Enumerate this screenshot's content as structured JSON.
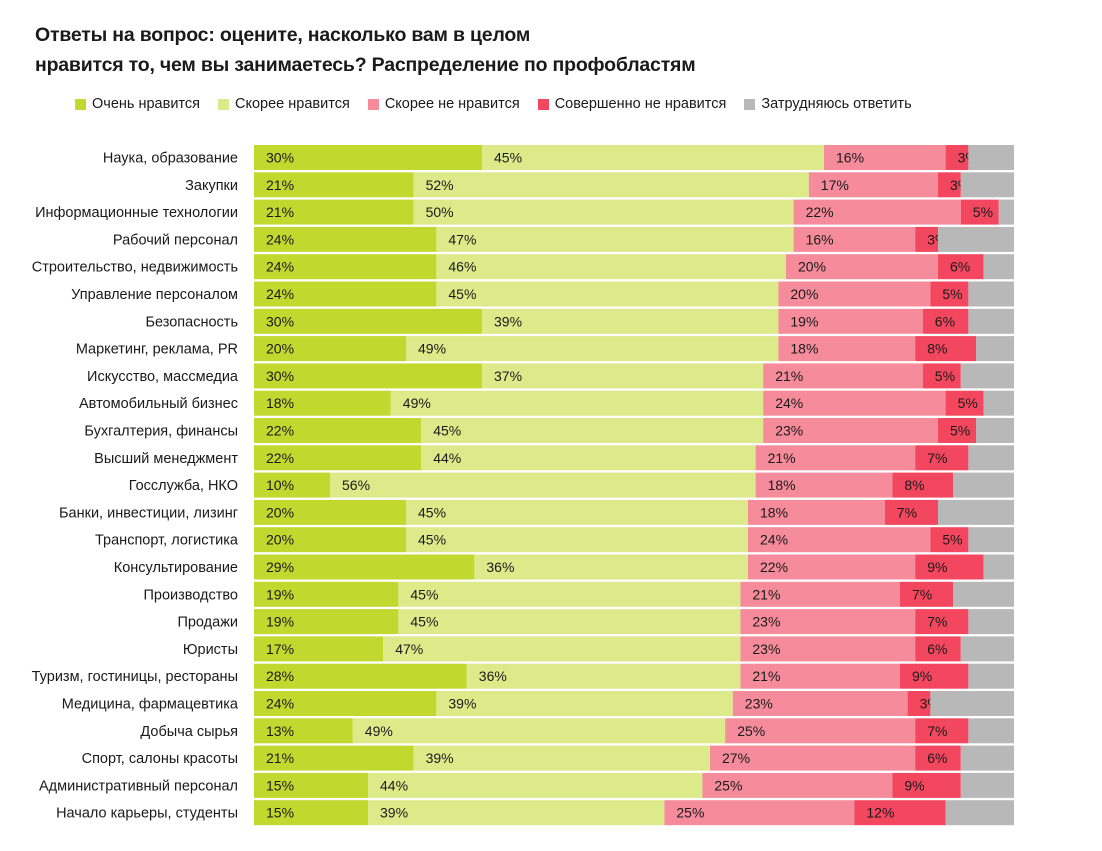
{
  "title_line1": "Ответы на вопрос: оцените, насколько вам в целом",
  "title_line2": "нравится то, чем вы занимаетесь? Распределение по профобластям",
  "chart_data": {
    "type": "bar",
    "orientation": "horizontal",
    "stacked": true,
    "normalized": true,
    "legend_position": "top",
    "categories": [
      "Наука, образование",
      "Закупки",
      "Информационные технологии",
      "Рабочий персонал",
      "Строительство, недвижимость",
      "Управление персоналом",
      "Безопасность",
      "Маркетинг, реклама, PR",
      "Искусство, массмедиа",
      "Автомобильный бизнес",
      "Бухгалтерия, финансы",
      "Высший менеджмент",
      "Госслужба, НКО",
      "Банки, инвестиции, лизинг",
      "Транспорт, логистика",
      "Консультирование",
      "Производство",
      "Продажи",
      "Юристы",
      "Туризм, гостиницы, рестораны",
      "Медицина, фармацевтика",
      "Добыча сырья",
      "Спорт, салоны красоты",
      "Административный персонал",
      "Начало карьеры, студенты"
    ],
    "series": [
      {
        "name": "Очень нравится",
        "color": "#c1d82f",
        "values": [
          30,
          21,
          21,
          24,
          24,
          24,
          30,
          20,
          30,
          18,
          22,
          22,
          10,
          20,
          20,
          29,
          19,
          19,
          17,
          28,
          24,
          13,
          21,
          15,
          15
        ]
      },
      {
        "name": "Скорее нравится",
        "color": "#dcea8a",
        "values": [
          45,
          52,
          50,
          47,
          46,
          45,
          39,
          49,
          37,
          49,
          45,
          44,
          56,
          45,
          45,
          36,
          45,
          45,
          47,
          36,
          39,
          49,
          39,
          44,
          39
        ]
      },
      {
        "name": "Скорее не нравится",
        "color": "#f68b9c",
        "values": [
          16,
          17,
          22,
          16,
          20,
          20,
          19,
          18,
          21,
          24,
          23,
          21,
          18,
          18,
          24,
          22,
          21,
          23,
          23,
          21,
          23,
          25,
          27,
          25,
          25
        ]
      },
      {
        "name": "Совершенно не нравится",
        "color": "#f2475f",
        "values": [
          3,
          3,
          5,
          3,
          6,
          5,
          6,
          8,
          5,
          5,
          5,
          7,
          8,
          7,
          5,
          9,
          7,
          7,
          6,
          9,
          3,
          7,
          6,
          9,
          12
        ]
      },
      {
        "name": "Затрудняюсь ответить",
        "color": "#b8b8b8",
        "values": [
          6,
          7,
          2,
          10,
          4,
          6,
          6,
          5,
          7,
          4,
          5,
          6,
          8,
          10,
          6,
          4,
          8,
          6,
          7,
          6,
          11,
          6,
          7,
          7,
          9
        ]
      }
    ],
    "value_suffix": "%",
    "labeled_series": [
      0,
      1,
      2,
      3
    ]
  }
}
